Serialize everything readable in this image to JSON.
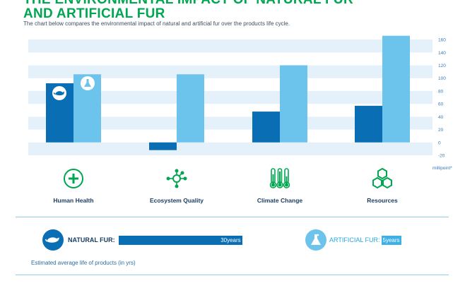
{
  "title_line1": "THE ENVIRONMENTAL IMPACT OF NATURAL FUR",
  "title_line2": "AND ARTIFICIAL FUR",
  "subtitle": "The chart below compares the environmental impact of natural and artificial fur over the products life cycle.",
  "chart_data": {
    "type": "bar",
    "categories": [
      "Human Health",
      "Ecosystem Quality",
      "Climate Change",
      "Resources"
    ],
    "series": [
      {
        "values": [
          92,
          -12,
          48,
          57
        ],
        "color": "#0a6eb4"
      },
      {
        "values": [
          106,
          106,
          120,
          166
        ],
        "color": "#6cc4ec"
      }
    ],
    "ylabel": "millipoint*",
    "ylim": [
      -20,
      170
    ],
    "yticks": [
      -20,
      0,
      20,
      40,
      60,
      80,
      100,
      120,
      140,
      160
    ],
    "ytick_labels": [
      "-20",
      "0",
      "20",
      "40",
      "60",
      "80",
      "100",
      "120",
      "140",
      "160"
    ],
    "grid": true,
    "legend": "none"
  },
  "categories_row": [
    {
      "label": "Human Health",
      "icon": "medical-cross-icon"
    },
    {
      "label": "Ecosystem Quality",
      "icon": "network-nodes-icon"
    },
    {
      "label": "Climate Change",
      "icon": "thermometers-icon"
    },
    {
      "label": "Resources",
      "icon": "hexagons-icon"
    }
  ],
  "natural_fur": {
    "label": "NATURAL FUR:",
    "value": "30years",
    "life_years": 30,
    "icon": "animal-icon"
  },
  "artificial_fur": {
    "label": "ARTIFICIAL FUR:",
    "value": "5years",
    "life_years": 5,
    "icon": "flask-icon"
  },
  "footnote": "Estimated average life of products (in yrs)",
  "colors": {
    "title": "#00a650",
    "natural": "#0a6eb4",
    "artificial": "#6cc4ec",
    "grid_band": "#e4f1fa",
    "icon_green": "#00a650",
    "rule": "#8fcbea",
    "text_dark": "#1a3e63"
  }
}
